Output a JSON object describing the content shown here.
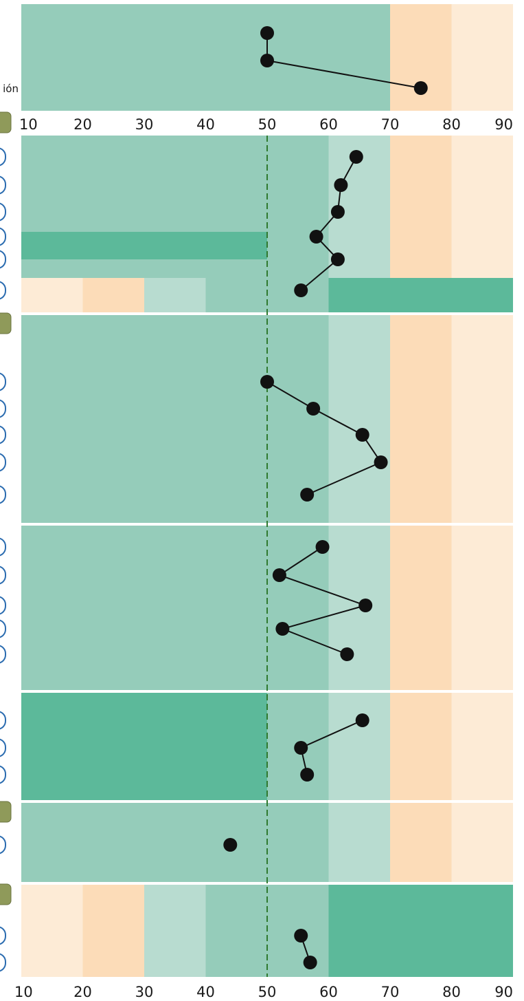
{
  "chart_data": {
    "type": "scatter",
    "title": "",
    "xlabel": "",
    "ylabel": "",
    "xlim": [
      10,
      90
    ],
    "x_ticks": [
      "10",
      "20",
      "30",
      "40",
      "50",
      "60",
      "70",
      "80",
      "90"
    ],
    "reference_line": 50,
    "band_colors": {
      "lowest": "#fdebd6",
      "low": "#fcdcb8",
      "below_average": "#b8dcd0",
      "average": "#95ccba",
      "high": "#5cb99a"
    },
    "top_panel": {
      "row_labels": [
        "ión"
      ],
      "points": [
        50,
        50,
        75
      ]
    },
    "panels": [
      {
        "points": [
          64.5,
          62.0,
          61.5,
          58.0,
          61.5,
          55.5
        ]
      },
      {
        "points": [
          50.0,
          57.5,
          65.5,
          68.5,
          56.5
        ]
      },
      {
        "points": [
          59.0,
          52.0,
          66.0,
          52.5,
          63.0
        ]
      },
      {
        "points": [
          65.5,
          55.5,
          56.5
        ]
      },
      {
        "points": [
          44.0
        ]
      },
      {
        "points": [
          55.5,
          57.0
        ]
      }
    ]
  }
}
